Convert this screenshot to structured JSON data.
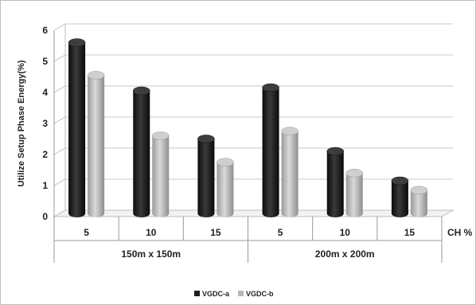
{
  "chart_data": {
    "type": "bar",
    "style": "3d-cylinder",
    "ylabel": "Utilize Setup Phase Energy(%)",
    "ylim": [
      0,
      6
    ],
    "yticks": [
      "0",
      "1",
      "2",
      "3",
      "4",
      "5",
      "6"
    ],
    "x_axis_unit_label": "CH %",
    "groups": [
      {
        "label": "150m x 150m",
        "categories": [
          "5",
          "10",
          "15"
        ]
      },
      {
        "label": "200m x 200m",
        "categories": [
          "5",
          "10",
          "15"
        ]
      }
    ],
    "series": [
      {
        "name": "VGDC-a",
        "color": "#1c1c1c",
        "values": [
          5.5,
          3.95,
          2.4,
          4.05,
          2.0,
          1.05
        ]
      },
      {
        "name": "VGDC-b",
        "color": "#b8b8b8",
        "values": [
          4.45,
          2.5,
          1.65,
          2.65,
          1.3,
          0.75
        ]
      }
    ],
    "grid": true,
    "legend_position": "bottom-center"
  }
}
